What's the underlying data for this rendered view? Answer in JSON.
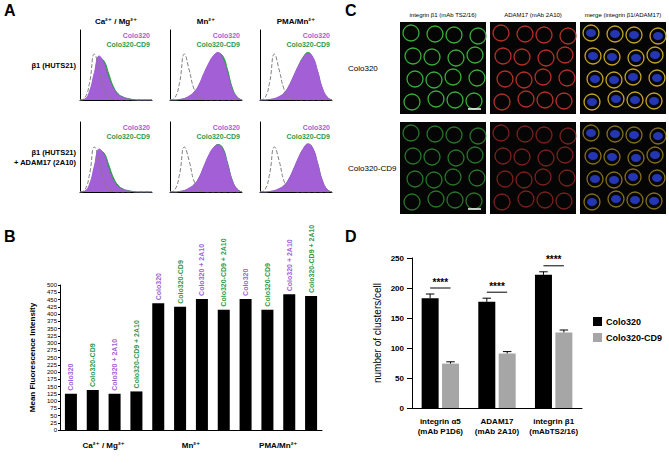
{
  "chart_data": [
    {
      "type": "line",
      "panel": "A",
      "title": "Ca²⁺ / Mg²⁺",
      "ylabel": "β1 (HUTS21)",
      "x": [
        0,
        1,
        2,
        3,
        4,
        5,
        6,
        7,
        8,
        9,
        10,
        11,
        12,
        13,
        14,
        15
      ],
      "xlim": [
        0,
        15
      ],
      "ylim": [
        0,
        140
      ],
      "tick_labels": false,
      "legend": "upper right",
      "series": [
        {
          "type": "line",
          "line_style": "dashed",
          "color": "#7f7f7f",
          "values": [
            0,
            4,
            35,
            92,
            60,
            22,
            6,
            1,
            0,
            0,
            0,
            0,
            0,
            0,
            0,
            0
          ]
        },
        {
          "name": "Colo320",
          "type": "area",
          "color": "#a25fd6",
          "values": [
            0,
            2,
            18,
            55,
            88,
            72,
            42,
            22,
            10,
            5,
            2,
            1,
            0,
            0,
            0,
            0
          ]
        },
        {
          "name": "Colo320-CD9",
          "type": "area",
          "color": "#2e9a4c",
          "values": [
            0,
            1,
            14,
            48,
            84,
            78,
            52,
            26,
            12,
            6,
            3,
            1,
            0,
            0,
            0,
            0
          ]
        }
      ]
    },
    {
      "type": "line",
      "title": "Mn²⁺",
      "x": [
        0,
        1,
        2,
        3,
        4,
        5,
        6,
        7,
        8,
        9,
        10,
        11,
        12,
        13,
        14,
        15
      ],
      "xlim": [
        0,
        15
      ],
      "ylim": [
        0,
        140
      ],
      "tick_labels": false,
      "legend": "upper right",
      "series": [
        {
          "type": "line",
          "line_style": "dashed",
          "color": "#7f7f7f",
          "values": [
            0,
            4,
            35,
            92,
            60,
            22,
            6,
            1,
            0,
            0,
            0,
            0,
            0,
            0,
            0,
            0
          ]
        },
        {
          "name": "Colo320",
          "type": "area",
          "color": "#a25fd6",
          "values": [
            0,
            0,
            1,
            3,
            8,
            16,
            30,
            52,
            72,
            88,
            95,
            82,
            52,
            20,
            5,
            0
          ]
        },
        {
          "name": "Colo320-CD9",
          "type": "area",
          "color": "#2e9a4c",
          "values": [
            0,
            0,
            1,
            3,
            7,
            14,
            28,
            48,
            70,
            86,
            93,
            88,
            60,
            24,
            6,
            0
          ]
        }
      ]
    },
    {
      "type": "line",
      "title": "PMA/Mn²⁺",
      "x": [
        0,
        1,
        2,
        3,
        4,
        5,
        6,
        7,
        8,
        9,
        10,
        11,
        12,
        13,
        14,
        15
      ],
      "xlim": [
        0,
        15
      ],
      "ylim": [
        0,
        140
      ],
      "tick_labels": false,
      "legend": "upper right",
      "series": [
        {
          "type": "line",
          "line_style": "dashed",
          "color": "#7f7f7f",
          "values": [
            0,
            4,
            35,
            92,
            60,
            22,
            6,
            1,
            0,
            0,
            0,
            0,
            0,
            0,
            0,
            0
          ]
        },
        {
          "name": "Colo320",
          "type": "area",
          "color": "#a25fd6",
          "values": [
            0,
            0,
            1,
            3,
            7,
            14,
            28,
            48,
            68,
            84,
            93,
            86,
            58,
            24,
            6,
            0
          ]
        },
        {
          "name": "Colo320-CD9",
          "type": "area",
          "color": "#2e9a4c",
          "values": [
            0,
            0,
            1,
            2,
            6,
            13,
            26,
            46,
            68,
            86,
            95,
            84,
            56,
            22,
            5,
            0
          ]
        }
      ]
    },
    {
      "type": "line",
      "ylabel": "β1 (HUTS21)\n+ ADAM17 (2A10)",
      "x": [
        0,
        1,
        2,
        3,
        4,
        5,
        6,
        7,
        8,
        9,
        10,
        11,
        12,
        13,
        14,
        15
      ],
      "xlim": [
        0,
        15
      ],
      "ylim": [
        0,
        140
      ],
      "tick_labels": false,
      "legend": "upper right",
      "series": [
        {
          "type": "line",
          "line_style": "dashed",
          "color": "#7f7f7f",
          "values": [
            0,
            4,
            36,
            90,
            62,
            22,
            6,
            1,
            0,
            0,
            0,
            0,
            0,
            0,
            0,
            0
          ]
        },
        {
          "name": "Colo320",
          "type": "area",
          "color": "#a25fd6",
          "values": [
            0,
            2,
            16,
            52,
            86,
            74,
            44,
            22,
            10,
            5,
            2,
            1,
            0,
            0,
            0,
            0
          ]
        },
        {
          "name": "Colo320-CD9",
          "type": "area",
          "color": "#2e9a4c",
          "values": [
            0,
            1,
            13,
            46,
            82,
            78,
            54,
            28,
            13,
            6,
            3,
            1,
            0,
            0,
            0,
            0
          ]
        }
      ]
    },
    {
      "type": "line",
      "x": [
        0,
        1,
        2,
        3,
        4,
        5,
        6,
        7,
        8,
        9,
        10,
        11,
        12,
        13,
        14,
        15
      ],
      "xlim": [
        0,
        15
      ],
      "ylim": [
        0,
        140
      ],
      "tick_labels": false,
      "legend": "upper right",
      "series": [
        {
          "type": "line",
          "line_style": "dashed",
          "color": "#7f7f7f",
          "values": [
            0,
            4,
            36,
            90,
            62,
            22,
            6,
            1,
            0,
            0,
            0,
            0,
            0,
            0,
            0,
            0
          ]
        },
        {
          "name": "Colo320",
          "type": "area",
          "color": "#a25fd6",
          "values": [
            0,
            0,
            1,
            3,
            8,
            15,
            28,
            50,
            72,
            88,
            94,
            84,
            55,
            22,
            5,
            0
          ]
        },
        {
          "name": "Colo320-CD9",
          "type": "area",
          "color": "#2e9a4c",
          "values": [
            0,
            0,
            1,
            3,
            7,
            13,
            27,
            48,
            70,
            86,
            95,
            88,
            58,
            23,
            6,
            0
          ]
        }
      ]
    },
    {
      "type": "line",
      "x": [
        0,
        1,
        2,
        3,
        4,
        5,
        6,
        7,
        8,
        9,
        10,
        11,
        12,
        13,
        14,
        15
      ],
      "xlim": [
        0,
        15
      ],
      "ylim": [
        0,
        140
      ],
      "tick_labels": false,
      "legend": "upper right",
      "series": [
        {
          "type": "line",
          "line_style": "dashed",
          "color": "#7f7f7f",
          "values": [
            0,
            4,
            36,
            90,
            62,
            22,
            6,
            1,
            0,
            0,
            0,
            0,
            0,
            0,
            0,
            0
          ]
        },
        {
          "name": "Colo320",
          "type": "area",
          "color": "#a25fd6",
          "values": [
            0,
            0,
            1,
            3,
            7,
            13,
            26,
            46,
            68,
            86,
            96,
            88,
            58,
            23,
            5,
            0
          ]
        },
        {
          "name": "Colo320-CD9",
          "type": "area",
          "color": "#2e9a4c",
          "values": [
            0,
            0,
            1,
            2,
            6,
            12,
            25,
            45,
            67,
            86,
            96,
            86,
            57,
            22,
            5,
            0
          ]
        }
      ]
    },
    {
      "type": "bar",
      "panel": "B",
      "categories": [
        "Colo320",
        "Colo320-CD9",
        "Colo320 + 2A10",
        "Colo320-CD9 + 2A10",
        "Colo320",
        "Colo320-CD9",
        "Colo320 + 2A10",
        "Colo320-CD9 + 2A10",
        "Colo320",
        "Colo320-CD9",
        "Colo320 + 2A10",
        "Colo320-CD9 + 2A10"
      ],
      "label_colors": [
        "#a25fd6",
        "#2e9a4c",
        "#a25fd6",
        "#2e9a4c",
        "#a25fd6",
        "#2e9a4c",
        "#a25fd6",
        "#2e9a4c",
        "#a25fd6",
        "#2e9a4c",
        "#a25fd6",
        "#2e9a4c"
      ],
      "groups": [
        "Ca²⁺ / Mg²⁺",
        "Mn²⁺",
        "PMA/Mn²⁺"
      ],
      "values": [
        125,
        138,
        125,
        133,
        437,
        425,
        452,
        415,
        452,
        415,
        468,
        462
      ],
      "color": "#000000",
      "ylabel": "Mean Fluorescence Intensity",
      "ylim": [
        0,
        500
      ],
      "yticks": [
        0,
        25,
        50,
        75,
        100,
        125,
        150,
        175,
        200,
        225,
        250,
        275,
        300,
        325,
        350,
        375,
        400,
        425,
        450,
        475,
        500
      ],
      "tick_labels": "y",
      "grid": false
    },
    {
      "type": "bar",
      "panel": "D",
      "categories": [
        "integrin α5\n(mAb P1D6)",
        "ADAM17\n(mAb 2A10)",
        "integrin β1\n(mAbTS2/16)"
      ],
      "series": [
        {
          "name": "Colo320",
          "color": "#000000",
          "values": [
            183,
            177,
            222
          ],
          "errors": [
            7,
            6,
            5
          ]
        },
        {
          "name": "Colo320-CD9",
          "color": "#a6a6a6",
          "values": [
            74,
            91,
            126
          ],
          "errors": [
            3,
            3,
            4
          ]
        }
      ],
      "significance": [
        "****",
        "****",
        "****"
      ],
      "ylabel": "number of clusters/cell",
      "ylim": [
        0,
        250
      ],
      "yticks": [
        0,
        50,
        100,
        150,
        200,
        250
      ],
      "legend": "right",
      "grid": false
    }
  ],
  "images": {
    "panel": "C",
    "columns": [
      "integrin β1 (mAb TS2/16)",
      "ADAM17 (mAb 2A10)",
      "merge (integrin β1/ADAM17)"
    ],
    "rows": [
      "Colo320",
      "Colo320-CD9"
    ]
  }
}
